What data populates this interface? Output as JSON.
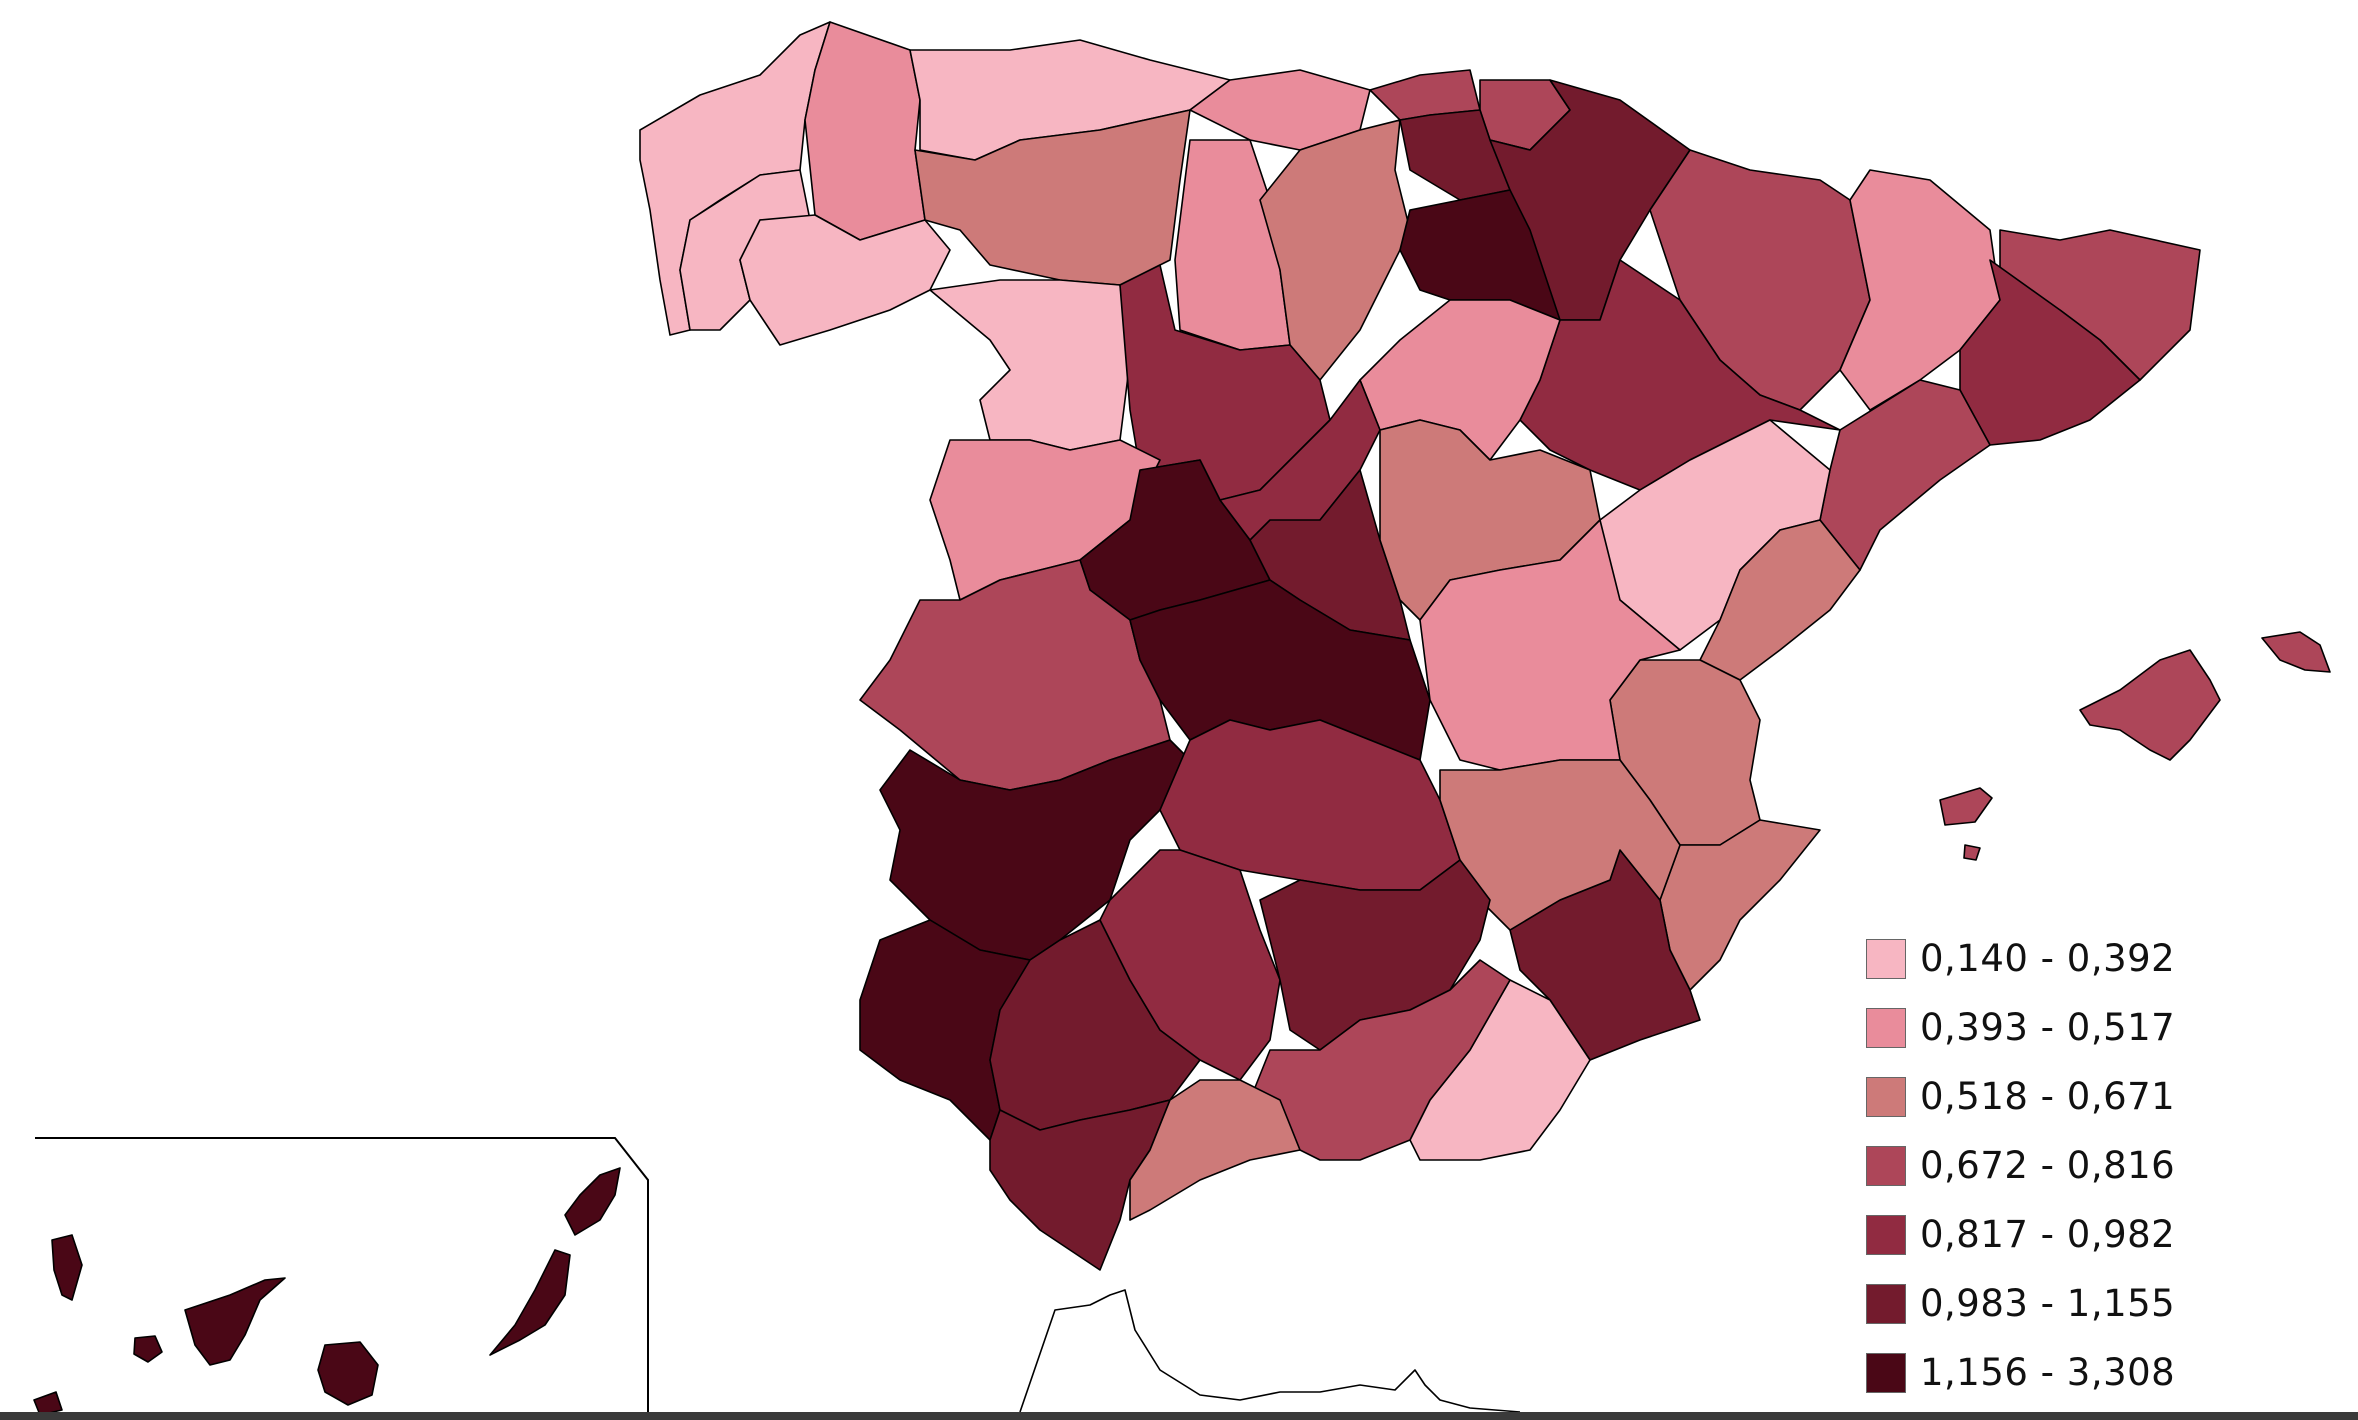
{
  "colors": {
    "c1": "#f7b6c2",
    "c2": "#e98c9b",
    "c3": "#cd7a79",
    "c4": "#ad4659",
    "c5": "#912b41",
    "c6": "#731b2d",
    "c7": "#4a0716"
  },
  "legend": [
    {
      "label": "0,140 - 0,392",
      "color": "#f7b6c2"
    },
    {
      "label": "0,393 - 0,517",
      "color": "#e98c9b"
    },
    {
      "label": "0,518 - 0,671",
      "color": "#cd7a79"
    },
    {
      "label": "0,672 - 0,816",
      "color": "#ad4659"
    },
    {
      "label": "0,817 - 0,982",
      "color": "#912b41"
    },
    {
      "label": "0,983 - 1,155",
      "color": "#731b2d"
    },
    {
      "label": "1,156 - 3,308",
      "color": "#4a0716"
    }
  ]
}
